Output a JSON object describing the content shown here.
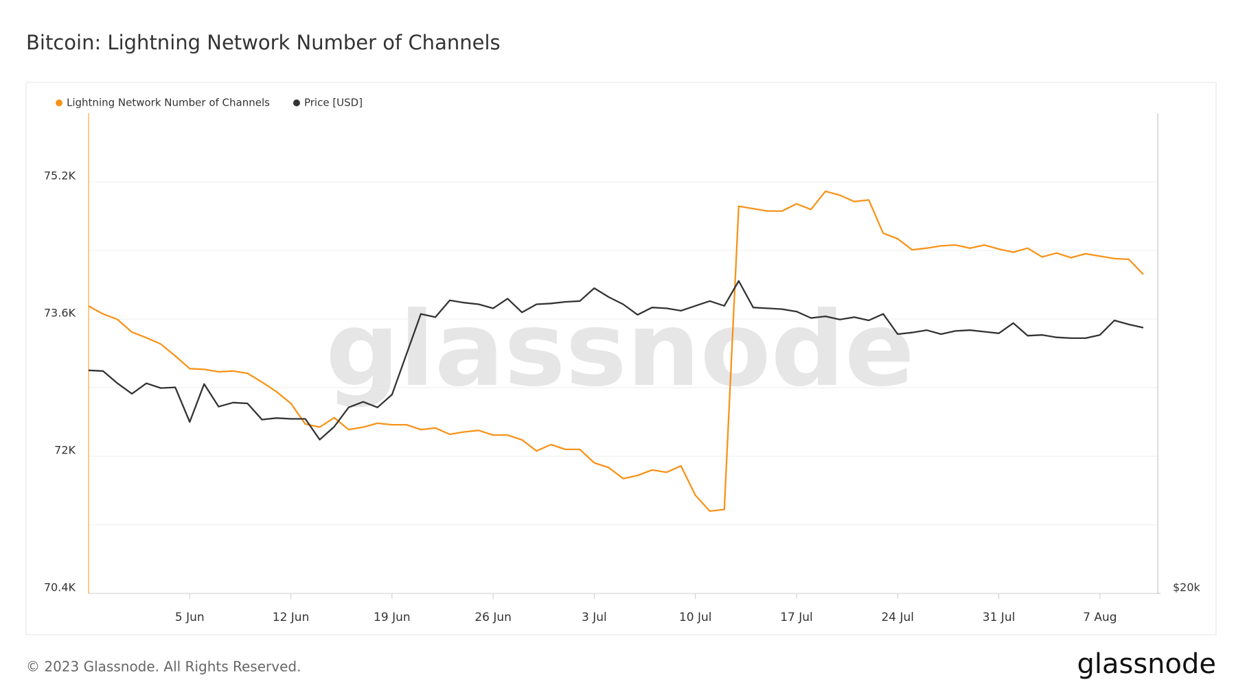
{
  "chart_data": {
    "type": "line",
    "title": "Bitcoin: Lightning Network Number of Channels",
    "x": [
      "29 May",
      "30 May",
      "31 May",
      "1 Jun",
      "2 Jun",
      "3 Jun",
      "4 Jun",
      "5 Jun",
      "6 Jun",
      "7 Jun",
      "8 Jun",
      "9 Jun",
      "10 Jun",
      "11 Jun",
      "12 Jun",
      "13 Jun",
      "14 Jun",
      "15 Jun",
      "16 Jun",
      "17 Jun",
      "18 Jun",
      "19 Jun",
      "20 Jun",
      "21 Jun",
      "22 Jun",
      "23 Jun",
      "24 Jun",
      "25 Jun",
      "26 Jun",
      "27 Jun",
      "28 Jun",
      "29 Jun",
      "30 Jun",
      "1 Jul",
      "2 Jul",
      "3 Jul",
      "4 Jul",
      "5 Jul",
      "6 Jul",
      "7 Jul",
      "8 Jul",
      "9 Jul",
      "10 Jul",
      "11 Jul",
      "12 Jul",
      "13 Jul",
      "14 Jul",
      "15 Jul",
      "16 Jul",
      "17 Jul",
      "18 Jul",
      "19 Jul",
      "20 Jul",
      "21 Jul",
      "22 Jul",
      "23 Jul",
      "24 Jul",
      "25 Jul",
      "26 Jul",
      "27 Jul",
      "28 Jul",
      "29 Jul",
      "30 Jul",
      "31 Jul",
      "1 Aug",
      "2 Aug",
      "3 Aug",
      "4 Aug",
      "5 Aug",
      "6 Aug",
      "7 Aug",
      "8 Aug",
      "9 Aug",
      "10 Aug"
    ],
    "xlim": [
      "29 May",
      "11 Aug"
    ],
    "xticks": [
      "5 Jun",
      "12 Jun",
      "19 Jun",
      "26 Jun",
      "3 Jul",
      "10 Jul",
      "17 Jul",
      "24 Jul",
      "31 Jul",
      "7 Aug"
    ],
    "ylim": [
      70400,
      76000
    ],
    "yticks": [
      {
        "value": 70400,
        "label": "70.4K"
      },
      {
        "value": 71200,
        "label": null
      },
      {
        "value": 72000,
        "label": "72K"
      },
      {
        "value": 72800,
        "label": null
      },
      {
        "value": 73600,
        "label": "73.6K"
      },
      {
        "value": 74400,
        "label": null
      },
      {
        "value": 75200,
        "label": "75.2K"
      }
    ],
    "y2lim": [
      20000,
      40000
    ],
    "y2ticks": [
      {
        "value": 20000,
        "label": "$20k"
      }
    ],
    "y2log": true,
    "grid": true,
    "legend": "top-left",
    "series": [
      {
        "name": "Lightning Network Number of Channels",
        "color": "#f7931a",
        "values": [
          73751,
          73659,
          73595,
          73447,
          73382,
          73308,
          73170,
          73022,
          73013,
          72985,
          72994,
          72967,
          72865,
          72754,
          72616,
          72376,
          72339,
          72450,
          72311,
          72339,
          72385,
          72367,
          72367,
          72311,
          72330,
          72256,
          72284,
          72302,
          72247,
          72247,
          72191,
          72062,
          72136,
          72080,
          72080,
          71923,
          71868,
          71739,
          71776,
          71840,
          71813,
          71887,
          71545,
          71360,
          71379,
          74915,
          74887,
          74859,
          74859,
          74943,
          74878,
          75090,
          75044,
          74970,
          74989,
          74601,
          74536,
          74407,
          74426,
          74453,
          74463,
          74426,
          74463,
          74416,
          74379,
          74426,
          74324,
          74370,
          74315,
          74361,
          74333,
          74305,
          74296,
          74121
        ]
      },
      {
        "name": "Price [USD]",
        "color": "#333333",
        "axis": "y2",
        "values": [
          27597,
          27570,
          27087,
          26681,
          27087,
          26901,
          26930,
          25617,
          27060,
          26190,
          26343,
          26313,
          25705,
          25762,
          25733,
          25733,
          24971,
          25440,
          26160,
          26373,
          26160,
          26651,
          28246,
          29939,
          29799,
          30535,
          30430,
          30360,
          30182,
          30606,
          30007,
          30360,
          30395,
          30465,
          30500,
          31073,
          30677,
          30360,
          29902,
          30218,
          30182,
          30077,
          30290,
          30500,
          30290,
          31400,
          30218,
          30182,
          30146,
          30042,
          29765,
          29834,
          29696,
          29799,
          29662,
          29939,
          29079,
          29146,
          29247,
          29079,
          29213,
          29247,
          29180,
          29113,
          29546,
          29012,
          29046,
          28945,
          28911,
          28911,
          29046,
          29662,
          29489,
          29352
        ]
      }
    ]
  },
  "footer": {
    "watermark": "glassnode",
    "copyright": "© 2023 Glassnode. All Rights Reserved.",
    "logo": "glassnode"
  }
}
